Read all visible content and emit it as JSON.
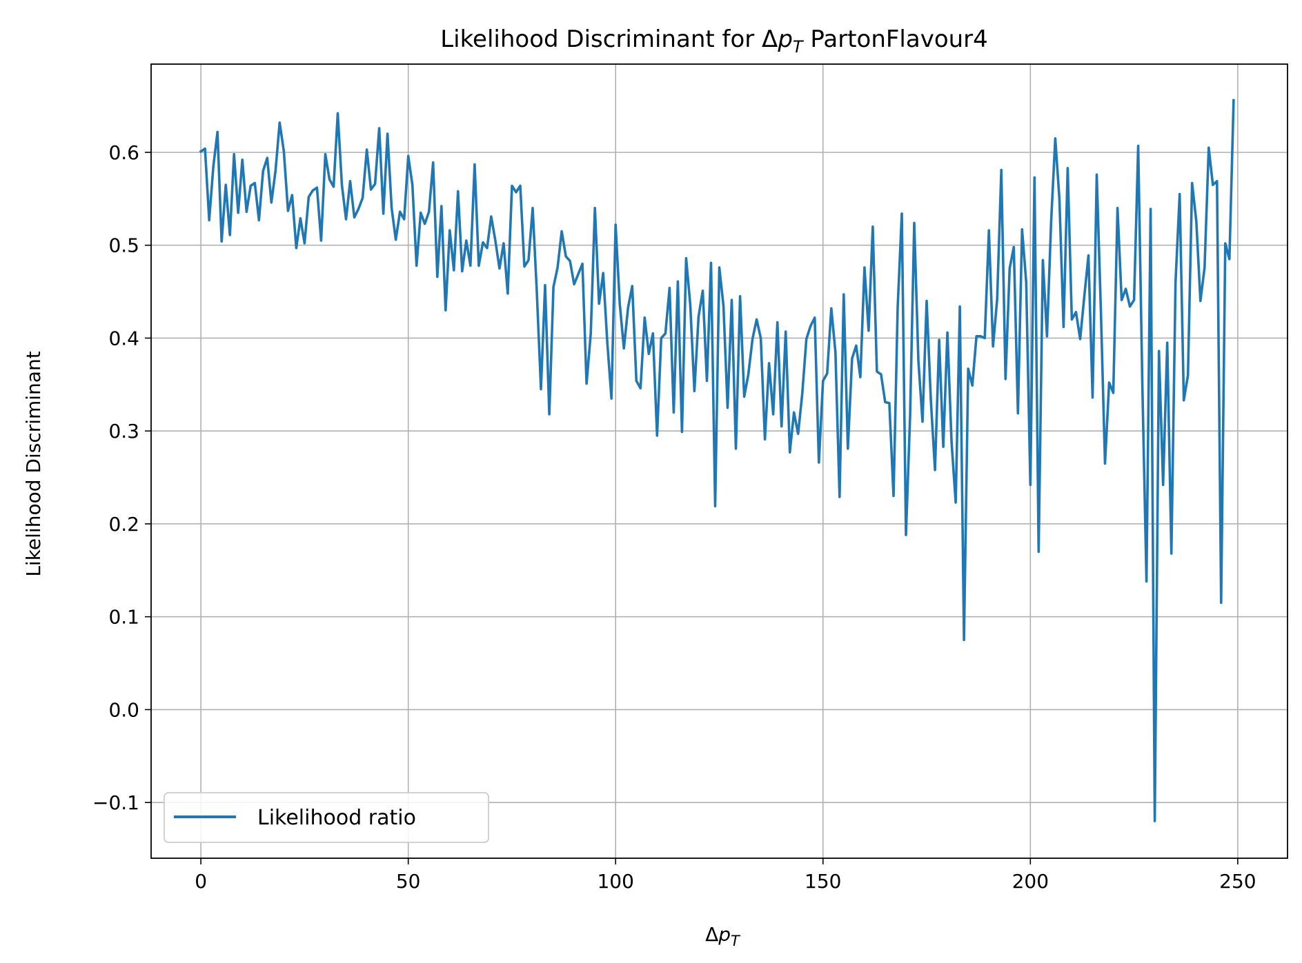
{
  "chart_data": {
    "type": "line",
    "title": "Likelihood Discriminant for Δ",
    "title_var": "p",
    "title_sub": "T",
    "title_suffix": " PartonFlavour4",
    "xlabel": "Δ",
    "xlabel_var": "p",
    "xlabel_sub": "T",
    "ylabel": "Likelihood Discriminant",
    "xlim": [
      -12,
      262
    ],
    "ylim": [
      -0.16,
      0.695
    ],
    "xticks": [
      0,
      50,
      100,
      150,
      200,
      250
    ],
    "xtick_labels": [
      "0",
      "50",
      "100",
      "150",
      "200",
      "250"
    ],
    "yticks": [
      -0.1,
      0.0,
      0.1,
      0.2,
      0.3,
      0.4,
      0.5,
      0.6
    ],
    "ytick_labels": [
      "−0.1",
      "0.0",
      "0.1",
      "0.2",
      "0.3",
      "0.4",
      "0.5",
      "0.6"
    ],
    "grid": true,
    "legend_position": "lower-left",
    "colors": {
      "series": "#1f77b4",
      "grid": "#b0b0b0"
    },
    "series": [
      {
        "name": "Likelihood ratio",
        "x": [
          0,
          1,
          2,
          3,
          4,
          5,
          6,
          7,
          8,
          9,
          10,
          11,
          12,
          13,
          14,
          15,
          16,
          17,
          18,
          19,
          20,
          21,
          22,
          23,
          24,
          25,
          26,
          27,
          28,
          29,
          30,
          31,
          32,
          33,
          34,
          35,
          36,
          37,
          38,
          39,
          40,
          41,
          42,
          43,
          44,
          45,
          46,
          47,
          48,
          49,
          50,
          51,
          52,
          53,
          54,
          55,
          56,
          57,
          58,
          59,
          60,
          61,
          62,
          63,
          64,
          65,
          66,
          67,
          68,
          69,
          70,
          71,
          72,
          73,
          74,
          75,
          76,
          77,
          78,
          79,
          80,
          81,
          82,
          83,
          84,
          85,
          86,
          87,
          88,
          89,
          90,
          91,
          92,
          93,
          94,
          95,
          96,
          97,
          98,
          99,
          100,
          101,
          102,
          103,
          104,
          105,
          106,
          107,
          108,
          109,
          110,
          111,
          112,
          113,
          114,
          115,
          116,
          117,
          118,
          119,
          120,
          121,
          122,
          123,
          124,
          125,
          126,
          127,
          128,
          129,
          130,
          131,
          132,
          133,
          134,
          135,
          136,
          137,
          138,
          139,
          140,
          141,
          142,
          143,
          144,
          145,
          146,
          147,
          148,
          149,
          150,
          151,
          152,
          153,
          154,
          155,
          156,
          157,
          158,
          159,
          160,
          161,
          162,
          163,
          164,
          165,
          166,
          167,
          168,
          169,
          170,
          171,
          172,
          173,
          174,
          175,
          176,
          177,
          178,
          179,
          180,
          181,
          182,
          183,
          184,
          185,
          186,
          187,
          188,
          189,
          190,
          191,
          192,
          193,
          194,
          195,
          196,
          197,
          198,
          199,
          200,
          201,
          202,
          203,
          204,
          205,
          206,
          207,
          208,
          209,
          210,
          211,
          212,
          213,
          214,
          215,
          216,
          217,
          218,
          219,
          220,
          221,
          222,
          223,
          224,
          225,
          226,
          227,
          228,
          229,
          230,
          231,
          232,
          233,
          234,
          235,
          236,
          237,
          238,
          239,
          240,
          241,
          242,
          243,
          244,
          245,
          246,
          247,
          248,
          249
        ],
        "y": [
          0.601,
          0.604,
          0.527,
          0.585,
          0.622,
          0.504,
          0.565,
          0.511,
          0.598,
          0.535,
          0.592,
          0.536,
          0.564,
          0.567,
          0.527,
          0.58,
          0.594,
          0.546,
          0.58,
          0.632,
          0.601,
          0.537,
          0.554,
          0.497,
          0.529,
          0.502,
          0.552,
          0.559,
          0.562,
          0.505,
          0.598,
          0.571,
          0.563,
          0.642,
          0.565,
          0.528,
          0.569,
          0.53,
          0.539,
          0.551,
          0.603,
          0.56,
          0.566,
          0.626,
          0.534,
          0.62,
          0.54,
          0.506,
          0.536,
          0.528,
          0.596,
          0.565,
          0.478,
          0.535,
          0.523,
          0.536,
          0.589,
          0.466,
          0.542,
          0.43,
          0.516,
          0.473,
          0.558,
          0.472,
          0.505,
          0.478,
          0.587,
          0.478,
          0.503,
          0.497,
          0.531,
          0.505,
          0.475,
          0.502,
          0.448,
          0.564,
          0.557,
          0.564,
          0.477,
          0.484,
          0.54,
          0.45,
          0.345,
          0.457,
          0.318,
          0.455,
          0.476,
          0.515,
          0.488,
          0.483,
          0.458,
          0.469,
          0.48,
          0.351,
          0.405,
          0.54,
          0.437,
          0.47,
          0.395,
          0.335,
          0.522,
          0.437,
          0.389,
          0.433,
          0.456,
          0.354,
          0.346,
          0.422,
          0.383,
          0.405,
          0.295,
          0.4,
          0.405,
          0.454,
          0.32,
          0.461,
          0.299,
          0.486,
          0.436,
          0.343,
          0.423,
          0.451,
          0.354,
          0.481,
          0.219,
          0.476,
          0.435,
          0.325,
          0.441,
          0.281,
          0.445,
          0.337,
          0.361,
          0.399,
          0.42,
          0.4,
          0.291,
          0.373,
          0.318,
          0.417,
          0.305,
          0.407,
          0.277,
          0.32,
          0.297,
          0.34,
          0.399,
          0.413,
          0.422,
          0.266,
          0.354,
          0.362,
          0.432,
          0.385,
          0.229,
          0.447,
          0.281,
          0.378,
          0.392,
          0.358,
          0.476,
          0.408,
          0.52,
          0.364,
          0.361,
          0.331,
          0.33,
          0.23,
          0.433,
          0.534,
          0.188,
          0.316,
          0.524,
          0.376,
          0.31,
          0.44,
          0.333,
          0.258,
          0.398,
          0.283,
          0.406,
          0.288,
          0.223,
          0.434,
          0.075,
          0.367,
          0.349,
          0.402,
          0.402,
          0.4,
          0.516,
          0.391,
          0.442,
          0.581,
          0.356,
          0.475,
          0.498,
          0.319,
          0.517,
          0.46,
          0.242,
          0.573,
          0.17,
          0.484,
          0.402,
          0.525,
          0.615,
          0.55,
          0.412,
          0.583,
          0.42,
          0.428,
          0.399,
          0.445,
          0.489,
          0.336,
          0.576,
          0.43,
          0.265,
          0.352,
          0.341,
          0.54,
          0.441,
          0.453,
          0.434,
          0.441,
          0.607,
          0.35,
          0.138,
          0.539,
          -0.12,
          0.386,
          0.242,
          0.395,
          0.168,
          0.46,
          0.555,
          0.333,
          0.36,
          0.567,
          0.526,
          0.44,
          0.476,
          0.605,
          0.565,
          0.569,
          0.115,
          0.502,
          0.485,
          0.656
        ]
      }
    ]
  }
}
